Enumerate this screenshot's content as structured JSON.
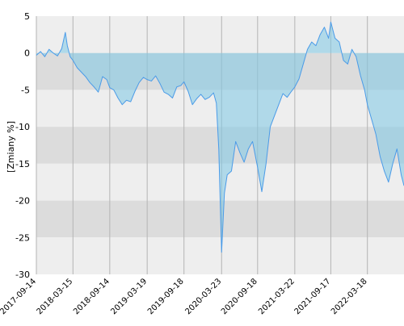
{
  "chart_data": {
    "type": "line",
    "ylabel": "[Zmiany %]",
    "ylim": [
      -30,
      5
    ],
    "y_ticks": [
      5,
      0,
      -5,
      -10,
      -15,
      -20,
      -25,
      -30
    ],
    "x_tick_labels": [
      "2017-09-14",
      "2018-03-15",
      "2018-09-14",
      "2019-03-19",
      "2019-09-18",
      "2020-03-23",
      "2020-09-18",
      "2021-03-22",
      "2021-09-17",
      "2022-03-18"
    ],
    "x_range": [
      "2017-09-14",
      "2022-09-16"
    ],
    "grid": "vertical lines at each date tick; alternating horizontal bands",
    "series": [
      {
        "x": [
          "2017-09-14",
          "2017-10-05",
          "2017-10-26",
          "2017-11-16",
          "2017-12-07",
          "2017-12-28",
          "2018-01-18",
          "2018-02-05",
          "2018-02-15",
          "2018-03-01",
          "2018-03-15",
          "2018-04-05",
          "2018-04-26",
          "2018-05-17",
          "2018-06-07",
          "2018-06-28",
          "2018-07-19",
          "2018-08-09",
          "2018-08-30",
          "2018-09-14",
          "2018-10-04",
          "2018-10-25",
          "2018-11-15",
          "2018-12-06",
          "2018-12-27",
          "2019-01-17",
          "2019-02-07",
          "2019-02-28",
          "2019-03-19",
          "2019-04-09",
          "2019-04-30",
          "2019-05-21",
          "2019-06-11",
          "2019-07-02",
          "2019-07-23",
          "2019-08-13",
          "2019-09-03",
          "2019-09-18",
          "2019-10-09",
          "2019-10-30",
          "2019-11-20",
          "2019-12-11",
          "2020-01-01",
          "2020-01-22",
          "2020-02-12",
          "2020-02-26",
          "2020-03-09",
          "2020-03-23",
          "2020-04-06",
          "2020-04-20",
          "2020-05-11",
          "2020-06-01",
          "2020-06-22",
          "2020-07-13",
          "2020-08-03",
          "2020-08-24",
          "2020-09-18",
          "2020-10-09",
          "2020-10-30",
          "2020-11-20",
          "2020-12-11",
          "2021-01-01",
          "2021-01-22",
          "2021-02-12",
          "2021-03-05",
          "2021-03-22",
          "2021-04-12",
          "2021-05-03",
          "2021-05-24",
          "2021-06-14",
          "2021-07-05",
          "2021-07-26",
          "2021-08-16",
          "2021-09-06",
          "2021-09-17",
          "2021-10-08",
          "2021-10-29",
          "2021-11-19",
          "2021-12-10",
          "2021-12-31",
          "2022-01-21",
          "2022-02-11",
          "2022-03-04",
          "2022-03-18",
          "2022-04-08",
          "2022-04-29",
          "2022-05-20",
          "2022-06-10",
          "2022-07-01",
          "2022-07-22",
          "2022-08-12",
          "2022-09-02",
          "2022-09-16"
        ],
        "y": [
          -0.3,
          0.2,
          -0.5,
          0.5,
          0.0,
          -0.4,
          0.6,
          2.8,
          1.0,
          -0.5,
          -1.0,
          -2.0,
          -2.6,
          -3.2,
          -4.0,
          -4.6,
          -5.3,
          -3.2,
          -3.6,
          -4.7,
          -5.0,
          -6.1,
          -7.0,
          -6.4,
          -6.6,
          -5.2,
          -4.0,
          -3.3,
          -3.6,
          -3.8,
          -3.1,
          -4.1,
          -5.3,
          -5.6,
          -6.1,
          -4.6,
          -4.4,
          -3.9,
          -5.2,
          -7.0,
          -6.2,
          -5.6,
          -6.3,
          -6.0,
          -5.4,
          -6.8,
          -13.0,
          -27.0,
          -19.0,
          -16.5,
          -16.0,
          -12.0,
          -13.5,
          -14.8,
          -13.0,
          -12.0,
          -15.5,
          -18.8,
          -15.0,
          -10.0,
          -8.5,
          -7.0,
          -5.5,
          -6.0,
          -5.2,
          -4.6,
          -3.5,
          -1.5,
          0.5,
          1.5,
          1.0,
          2.5,
          3.5,
          2.0,
          4.2,
          2.0,
          1.5,
          -1.0,
          -1.5,
          0.5,
          -0.5,
          -3.0,
          -5.0,
          -7.0,
          -9.0,
          -11.0,
          -14.0,
          -16.0,
          -17.5,
          -15.0,
          -13.0,
          -16.5,
          -18.0
        ]
      }
    ]
  }
}
